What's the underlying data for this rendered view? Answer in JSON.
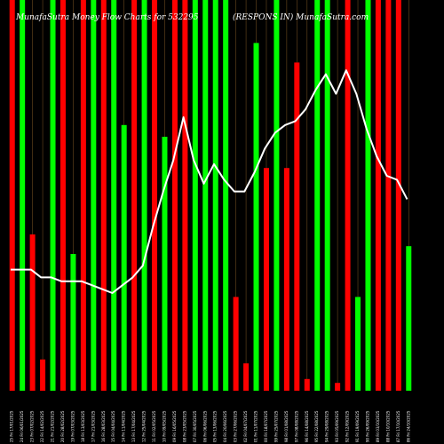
{
  "chart_data": {
    "type": "bar",
    "title_left": "MunafaSutra  Money Flow Charts for 532295",
    "title_right": "(RESPONS IN)  MunafaSutra.com",
    "x_tick_labels": [
      "25 Fri 17/01/2025",
      "24 Fri 06/01/2025",
      "23 Fri 07/02/2025",
      "22 Fri 14/02/2025",
      "21 Fri 21/02/2025",
      "20 Fri 28/02/2025",
      "19 Fri 07/03/2025",
      "18 Fri 13/03/2025",
      "17 Fri 21/03/2025",
      "16 Fri 28/03/2025",
      "15 Fri 04/04/2025",
      "14 Fri 11/04/2025",
      "13 Fri 17/04/2025",
      "12 Fri 25/04/2025",
      "11 Fri 02/05/2025",
      "10 Fri 09/05/2025",
      "09 Fri 16/05/2025",
      "08 Fri 23/05/2025",
      "07 Fri 30/05/2025",
      "06 Fri 06/06/2025",
      "05 Fri 13/06/2025",
      "04 Fri 20/06/2025",
      "03 Fri 27/06/2025",
      "02 Fri 04/07/2025",
      "01 Fri 11/07/2025",
      "00 Fri 18/07/2025",
      "99 Fri 25/07/2025",
      "98 Fri 01/08/2025",
      "97 Fri 08/08/2025",
      "96 Fri 14/08/2025",
      "95 Fri 22/08/2025",
      "94 Fri 29/08/2025",
      "93 Fri 05/09/2025",
      "92 Fri 12/09/2025",
      "91 Fri 19/09/2025",
      "90 Fri 26/09/2025",
      "89 Fri 03/10/2025",
      "88 Fri 10/10/2025",
      "87 Fri 17/10/2025",
      "86 Fri 24/10/2025"
    ],
    "bar_colors": [
      "#ff0000",
      "#00ff00"
    ],
    "bars": [
      {
        "value": 100,
        "color": "red"
      },
      {
        "value": 100,
        "color": "green"
      },
      {
        "value": 40,
        "color": "red"
      },
      {
        "value": 8,
        "color": "red"
      },
      {
        "value": 100,
        "color": "green"
      },
      {
        "value": 100,
        "color": "red"
      },
      {
        "value": 35,
        "color": "green"
      },
      {
        "value": 100,
        "color": "red"
      },
      {
        "value": 100,
        "color": "green"
      },
      {
        "value": 100,
        "color": "red"
      },
      {
        "value": 100,
        "color": "green"
      },
      {
        "value": 68,
        "color": "green"
      },
      {
        "value": 100,
        "color": "red"
      },
      {
        "value": 100,
        "color": "green"
      },
      {
        "value": 100,
        "color": "red"
      },
      {
        "value": 65,
        "color": "green"
      },
      {
        "value": 100,
        "color": "red"
      },
      {
        "value": 100,
        "color": "red"
      },
      {
        "value": 100,
        "color": "green"
      },
      {
        "value": 100,
        "color": "green"
      },
      {
        "value": 100,
        "color": "green"
      },
      {
        "value": 100,
        "color": "green"
      },
      {
        "value": 24,
        "color": "red"
      },
      {
        "value": 7,
        "color": "red"
      },
      {
        "value": 89,
        "color": "green"
      },
      {
        "value": 57,
        "color": "red"
      },
      {
        "value": 100,
        "color": "green"
      },
      {
        "value": 57,
        "color": "red"
      },
      {
        "value": 84,
        "color": "red"
      },
      {
        "value": 3,
        "color": "red"
      },
      {
        "value": 100,
        "color": "green"
      },
      {
        "value": 100,
        "color": "green"
      },
      {
        "value": 2,
        "color": "red"
      },
      {
        "value": 100,
        "color": "red"
      },
      {
        "value": 24,
        "color": "green"
      },
      {
        "value": 100,
        "color": "green"
      },
      {
        "value": 100,
        "color": "red"
      },
      {
        "value": 100,
        "color": "red"
      },
      {
        "value": 100,
        "color": "red"
      },
      {
        "value": 37,
        "color": "green"
      }
    ],
    "line": [
      31,
      31,
      31,
      29,
      29,
      28,
      28,
      28,
      27,
      26,
      25,
      27,
      29,
      32,
      42,
      51,
      59,
      70,
      59,
      53,
      58,
      54,
      51,
      51,
      56,
      62,
      66,
      68,
      69,
      72,
      77,
      81,
      76,
      82,
      76,
      67,
      60,
      55,
      54,
      49
    ],
    "ylim": [
      0,
      100
    ],
    "grid": false
  }
}
